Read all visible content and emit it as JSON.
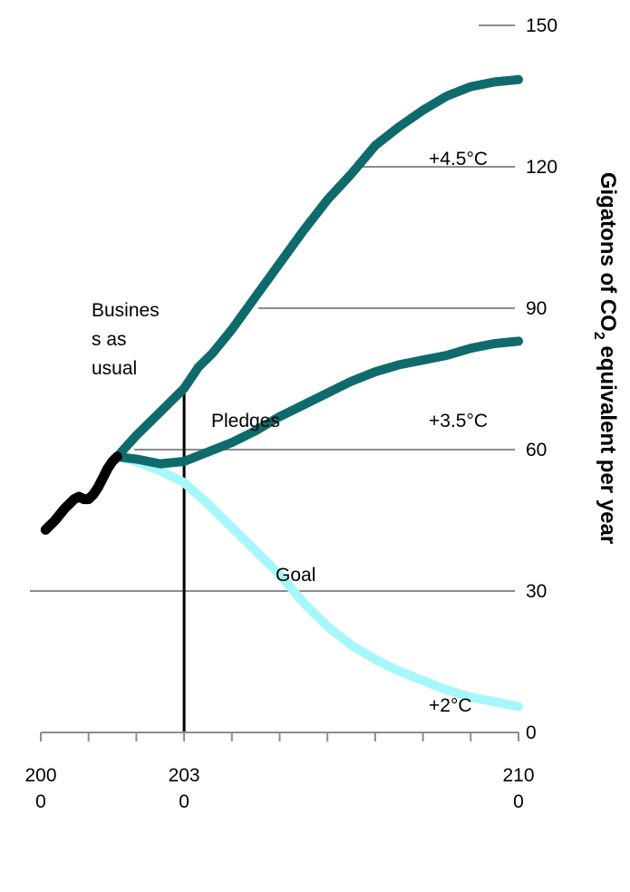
{
  "chart_data": {
    "type": "line",
    "ylabel": "Gigatons of CO",
    "ylabel_subscript": "2",
    "ylabel_suffix": " equivalent per year",
    "y_axis": {
      "ticks": [
        "150",
        "120",
        "90",
        "60",
        "30",
        "0"
      ],
      "tick_values": [
        150,
        120,
        90,
        60,
        30,
        0
      ],
      "position": "right"
    },
    "x_axis": {
      "ticks": [
        {
          "value": 2000,
          "label": [
            "200",
            "0"
          ]
        },
        {
          "value": 2030,
          "label": [
            "203",
            "0"
          ]
        },
        {
          "value": 2100,
          "label": [
            "210",
            "0"
          ]
        }
      ]
    },
    "xlim": [
      2000,
      2100
    ],
    "ylim": [
      0,
      150
    ],
    "grid": true,
    "markers": {
      "vertical_line_x": 2030
    },
    "series": [
      {
        "name": "historical",
        "color": "#000000",
        "x": [
          2001,
          2003,
          2005,
          2006,
          2007,
          2008,
          2009,
          2010,
          2011,
          2012,
          2013,
          2014,
          2015,
          2016
        ],
        "y": [
          43,
          45,
          47.5,
          48.5,
          49.5,
          50,
          49.5,
          49.5,
          50.5,
          52,
          54,
          56,
          57.5,
          58.5
        ]
      },
      {
        "name": "business-as-usual",
        "color": "#0f6b6b",
        "x": [
          2016,
          2020,
          2025,
          2030,
          2033,
          2036,
          2040,
          2045,
          2050,
          2055,
          2060,
          2065,
          2070,
          2075,
          2080,
          2085,
          2090,
          2095,
          2100
        ],
        "y": [
          58.5,
          63,
          68,
          73,
          77.5,
          80.5,
          85.5,
          92.5,
          99.5,
          106.5,
          113,
          118.5,
          124.5,
          128.5,
          132,
          135,
          137,
          138,
          138.5
        ]
      },
      {
        "name": "pledges",
        "color": "#0f6b6b",
        "x": [
          2016,
          2020,
          2025,
          2030,
          2035,
          2040,
          2045,
          2050,
          2055,
          2060,
          2065,
          2070,
          2075,
          2080,
          2085,
          2090,
          2095,
          2100
        ],
        "y": [
          58.5,
          58,
          57,
          57.5,
          59.5,
          61.5,
          64,
          67,
          69.5,
          72,
          74.5,
          76.5,
          78,
          79,
          80,
          81.5,
          82.5,
          83
        ]
      },
      {
        "name": "goal",
        "color": "#a6f7fa",
        "x": [
          2016,
          2020,
          2025,
          2030,
          2035,
          2040,
          2045,
          2050,
          2055,
          2060,
          2065,
          2070,
          2075,
          2080,
          2085,
          2090,
          2095,
          2100
        ],
        "y": [
          58.5,
          57.5,
          55.5,
          53,
          48.5,
          43.5,
          38.5,
          33.5,
          27.5,
          22.5,
          18.5,
          15.5,
          13,
          11,
          9,
          7.5,
          6.5,
          5.5
        ]
      }
    ],
    "annotations": [
      {
        "lines": [
          "Busines",
          "s as",
          "usual"
        ]
      },
      {
        "lines": [
          "Pledges"
        ]
      },
      {
        "lines": [
          "Goal"
        ]
      },
      {
        "lines": [
          "+4.5°C"
        ]
      },
      {
        "lines": [
          "+3.5°C"
        ]
      },
      {
        "lines": [
          "+2°C"
        ]
      }
    ]
  }
}
